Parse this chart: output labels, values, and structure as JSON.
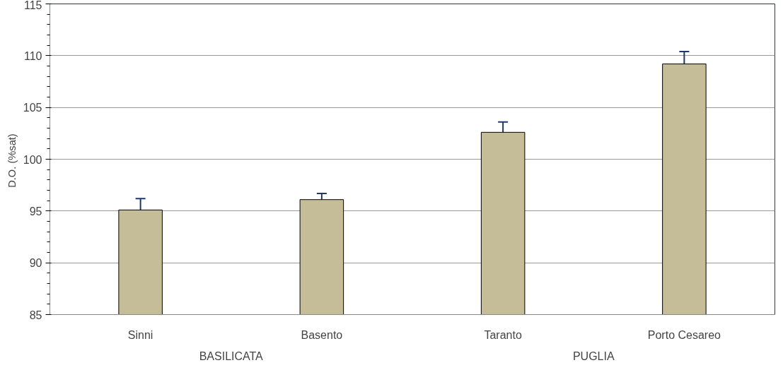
{
  "chart_data": {
    "type": "bar",
    "ylabel": "D.O.  (%sat)",
    "categories": [
      "Sinni",
      "Basento",
      "Taranto",
      "Porto Cesareo"
    ],
    "values": [
      95.1,
      96.1,
      102.6,
      109.2
    ],
    "errors": [
      1.1,
      0.6,
      1.0,
      1.2
    ],
    "color": "#c4bd97",
    "annotations": [
      "BASILICATA",
      "PUGLIA"
    ],
    "ylim": [
      85,
      115
    ],
    "yticks": [
      85,
      90,
      95,
      100,
      105,
      110,
      115
    ],
    "grid": "y"
  }
}
